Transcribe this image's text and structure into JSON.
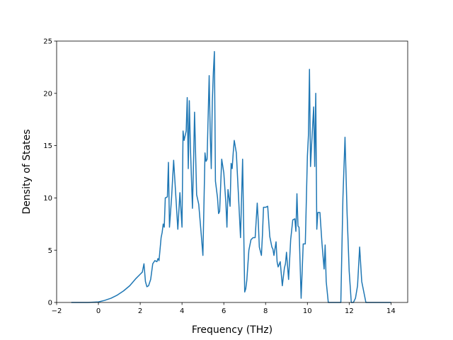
{
  "chart_data": {
    "type": "line",
    "title": "",
    "xlabel": "Frequency (THz)",
    "ylabel": "Density of States",
    "xlim": [
      -2,
      14.8
    ],
    "ylim": [
      0,
      25
    ],
    "xticks": [
      -2,
      0,
      2,
      4,
      6,
      8,
      10,
      12,
      14
    ],
    "yticks": [
      0,
      5,
      10,
      15,
      20,
      25
    ],
    "xtick_labels": [
      "−2",
      "0",
      "2",
      "4",
      "6",
      "8",
      "10",
      "12",
      "14"
    ],
    "ytick_labels": [
      "0",
      "5",
      "10",
      "15",
      "20",
      "25"
    ],
    "grid": false,
    "legend": "none",
    "series": [
      {
        "color": "#1f77b4",
        "x": [
          -1.3,
          -0.5,
          0.0,
          0.3,
          0.6,
          0.9,
          1.2,
          1.5,
          1.8,
          2.0,
          2.1,
          2.18,
          2.25,
          2.32,
          2.4,
          2.5,
          2.6,
          2.7,
          2.8,
          2.85,
          2.9,
          3.0,
          3.05,
          3.1,
          3.15,
          3.2,
          3.3,
          3.35,
          3.4,
          3.5,
          3.6,
          3.7,
          3.8,
          3.9,
          4.0,
          4.05,
          4.1,
          4.2,
          4.25,
          4.3,
          4.35,
          4.4,
          4.5,
          4.55,
          4.6,
          4.7,
          4.8,
          4.9,
          5.0,
          5.1,
          5.15,
          5.2,
          5.3,
          5.35,
          5.4,
          5.45,
          5.5,
          5.55,
          5.6,
          5.7,
          5.75,
          5.8,
          5.9,
          6.0,
          6.1,
          6.15,
          6.2,
          6.3,
          6.35,
          6.4,
          6.45,
          6.5,
          6.6,
          6.7,
          6.8,
          6.9,
          7.0,
          7.05,
          7.1,
          7.2,
          7.3,
          7.4,
          7.5,
          7.6,
          7.65,
          7.7,
          7.8,
          7.85,
          7.9,
          8.0,
          8.1,
          8.2,
          8.3,
          8.35,
          8.4,
          8.5,
          8.55,
          8.6,
          8.7,
          8.8,
          8.9,
          8.95,
          9.0,
          9.1,
          9.2,
          9.3,
          9.4,
          9.45,
          9.5,
          9.55,
          9.6,
          9.7,
          9.8,
          9.9,
          10.0,
          10.05,
          10.1,
          10.15,
          10.2,
          10.3,
          10.35,
          10.4,
          10.45,
          10.5,
          10.6,
          10.7,
          10.8,
          10.85,
          10.9,
          11.0,
          11.1,
          11.15,
          11.3,
          11.6,
          11.7,
          11.8,
          11.9,
          12.0,
          12.1,
          12.2,
          12.3,
          12.4,
          12.5,
          12.6,
          12.7,
          12.8,
          12.9,
          13.5,
          14.0
        ],
        "y": [
          0,
          0,
          0.05,
          0.2,
          0.4,
          0.7,
          1.1,
          1.6,
          2.3,
          2.7,
          2.9,
          3.7,
          2.0,
          1.5,
          1.6,
          2.2,
          3.7,
          4.0,
          3.9,
          4.2,
          4.0,
          6.2,
          6.7,
          7.5,
          7.2,
          10.0,
          10.1,
          13.4,
          7.2,
          10.0,
          13.6,
          10.3,
          7.0,
          10.5,
          7.2,
          16.4,
          15.5,
          16.4,
          19.6,
          12.8,
          19.3,
          15.0,
          9.0,
          13.2,
          18.2,
          10.3,
          9.4,
          7.0,
          4.5,
          14.3,
          13.5,
          13.7,
          21.7,
          16.2,
          12.8,
          19.2,
          22.0,
          24.0,
          11.6,
          10.0,
          8.5,
          8.7,
          13.7,
          12.4,
          9.5,
          7.2,
          10.8,
          9.2,
          13.3,
          12.8,
          14.3,
          15.5,
          14.3,
          10.3,
          6.2,
          13.7,
          1.0,
          1.3,
          2.1,
          5.0,
          6.0,
          6.2,
          6.2,
          9.5,
          7.7,
          5.3,
          4.5,
          6.5,
          9.1,
          9.1,
          9.2,
          6.3,
          5.3,
          5.1,
          4.5,
          5.8,
          3.9,
          3.4,
          3.9,
          1.6,
          3.3,
          3.7,
          4.8,
          2.2,
          6.0,
          7.9,
          8.0,
          6.8,
          10.4,
          7.3,
          7.2,
          0.4,
          5.6,
          5.6,
          14.0,
          16.0,
          22.3,
          13.0,
          15.0,
          18.7,
          13.0,
          20.0,
          7.0,
          8.6,
          8.6,
          5.6,
          3.2,
          5.5,
          2.0,
          0,
          0,
          0,
          0,
          0,
          10.0,
          15.8,
          8.5,
          3.0,
          0,
          0,
          0.4,
          1.6,
          5.3,
          2.0,
          1.0,
          0,
          0,
          0,
          0
        ]
      }
    ]
  }
}
